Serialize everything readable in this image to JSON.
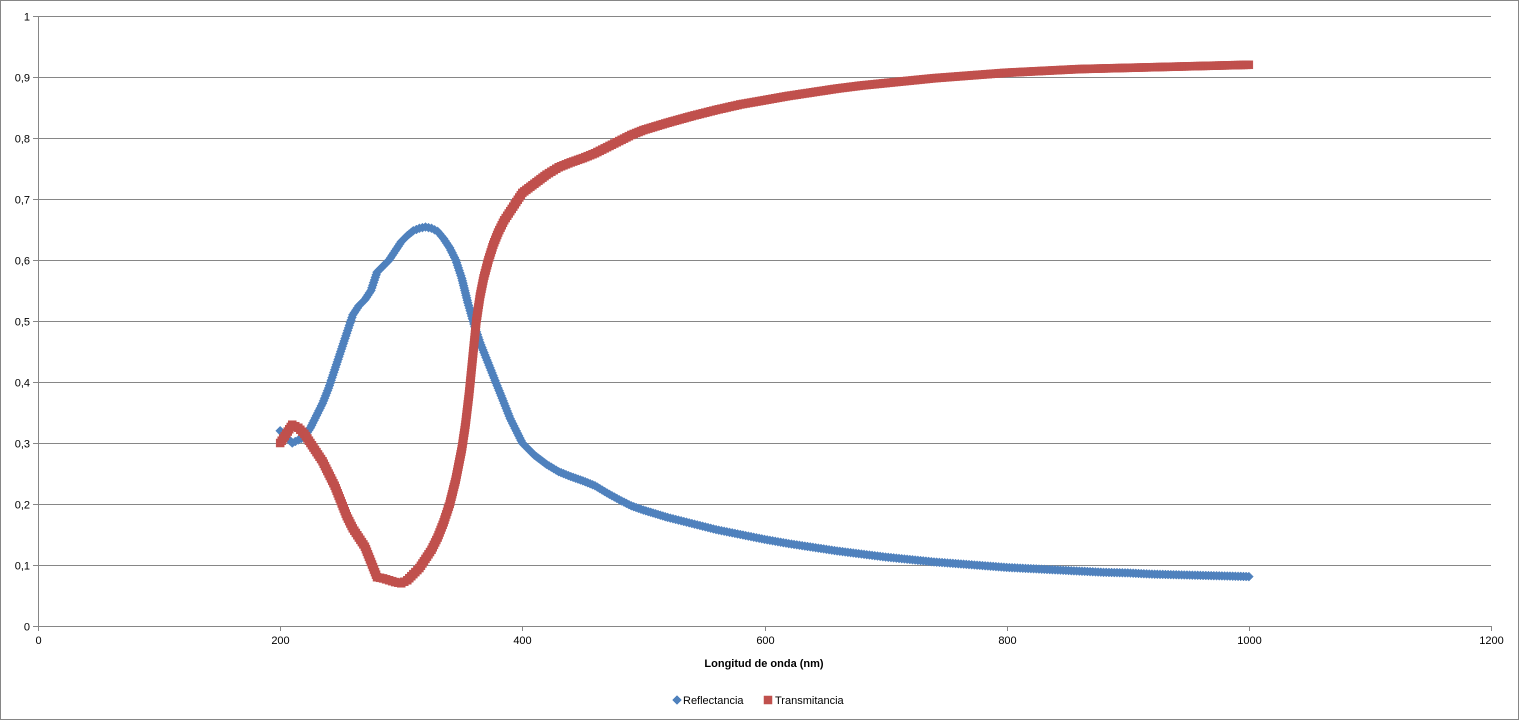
{
  "chart_data": {
    "type": "scatter",
    "title": "",
    "xlabel": "Longitud de onda (nm)",
    "ylabel": "",
    "xlim": [
      0,
      1200
    ],
    "ylim": [
      0,
      1
    ],
    "x_ticks": [
      0,
      200,
      400,
      600,
      800,
      1000,
      1200
    ],
    "x_tick_labels": [
      "0",
      "200",
      "400",
      "600",
      "800",
      "1000",
      "1200"
    ],
    "y_ticks": [
      0,
      0.1,
      0.2,
      0.3,
      0.4,
      0.5,
      0.6,
      0.7,
      0.8,
      0.9,
      1
    ],
    "y_tick_labels": [
      "0",
      "0,1",
      "0,2",
      "0,3",
      "0,4",
      "0,5",
      "0,6",
      "0,7",
      "0,8",
      "0,9",
      "1"
    ],
    "grid": "horizontal",
    "legend_position": "bottom",
    "series": [
      {
        "name": "Reflectancia",
        "marker": "diamond",
        "color": "#4F81BD",
        "points": [
          [
            200,
            0.32
          ],
          [
            205,
            0.31
          ],
          [
            210,
            0.3
          ],
          [
            215,
            0.305
          ],
          [
            220,
            0.31
          ],
          [
            225,
            0.325
          ],
          [
            230,
            0.345
          ],
          [
            235,
            0.365
          ],
          [
            240,
            0.39
          ],
          [
            245,
            0.42
          ],
          [
            250,
            0.45
          ],
          [
            255,
            0.48
          ],
          [
            260,
            0.51
          ],
          [
            265,
            0.525
          ],
          [
            270,
            0.535
          ],
          [
            275,
            0.55
          ],
          [
            280,
            0.58
          ],
          [
            285,
            0.59
          ],
          [
            290,
            0.6
          ],
          [
            295,
            0.615
          ],
          [
            300,
            0.63
          ],
          [
            305,
            0.64
          ],
          [
            310,
            0.648
          ],
          [
            315,
            0.652
          ],
          [
            320,
            0.654
          ],
          [
            325,
            0.652
          ],
          [
            330,
            0.647
          ],
          [
            335,
            0.635
          ],
          [
            340,
            0.62
          ],
          [
            345,
            0.6
          ],
          [
            350,
            0.57
          ],
          [
            355,
            0.53
          ],
          [
            360,
            0.495
          ],
          [
            365,
            0.465
          ],
          [
            370,
            0.44
          ],
          [
            375,
            0.415
          ],
          [
            380,
            0.39
          ],
          [
            385,
            0.365
          ],
          [
            390,
            0.34
          ],
          [
            395,
            0.32
          ],
          [
            400,
            0.3
          ],
          [
            410,
            0.28
          ],
          [
            420,
            0.265
          ],
          [
            430,
            0.253
          ],
          [
            440,
            0.245
          ],
          [
            450,
            0.238
          ],
          [
            460,
            0.23
          ],
          [
            470,
            0.218
          ],
          [
            480,
            0.207
          ],
          [
            490,
            0.197
          ],
          [
            500,
            0.19
          ],
          [
            520,
            0.178
          ],
          [
            540,
            0.168
          ],
          [
            560,
            0.158
          ],
          [
            580,
            0.15
          ],
          [
            600,
            0.142
          ],
          [
            620,
            0.135
          ],
          [
            640,
            0.129
          ],
          [
            660,
            0.123
          ],
          [
            680,
            0.118
          ],
          [
            700,
            0.113
          ],
          [
            720,
            0.109
          ],
          [
            740,
            0.105
          ],
          [
            760,
            0.102
          ],
          [
            780,
            0.099
          ],
          [
            800,
            0.096
          ],
          [
            820,
            0.094
          ],
          [
            840,
            0.092
          ],
          [
            860,
            0.09
          ],
          [
            880,
            0.088
          ],
          [
            900,
            0.087
          ],
          [
            920,
            0.085
          ],
          [
            940,
            0.084
          ],
          [
            960,
            0.083
          ],
          [
            980,
            0.082
          ],
          [
            1000,
            0.081
          ]
        ]
      },
      {
        "name": "Transmitancia",
        "marker": "square",
        "color": "#C0504D",
        "points": [
          [
            200,
            0.3
          ],
          [
            205,
            0.315
          ],
          [
            210,
            0.33
          ],
          [
            215,
            0.325
          ],
          [
            220,
            0.315
          ],
          [
            225,
            0.3
          ],
          [
            230,
            0.285
          ],
          [
            235,
            0.27
          ],
          [
            240,
            0.25
          ],
          [
            245,
            0.23
          ],
          [
            250,
            0.205
          ],
          [
            255,
            0.18
          ],
          [
            260,
            0.16
          ],
          [
            265,
            0.145
          ],
          [
            270,
            0.13
          ],
          [
            275,
            0.105
          ],
          [
            280,
            0.08
          ],
          [
            285,
            0.078
          ],
          [
            290,
            0.075
          ],
          [
            295,
            0.072
          ],
          [
            300,
            0.07
          ],
          [
            305,
            0.075
          ],
          [
            310,
            0.085
          ],
          [
            315,
            0.095
          ],
          [
            320,
            0.11
          ],
          [
            325,
            0.125
          ],
          [
            330,
            0.145
          ],
          [
            335,
            0.17
          ],
          [
            340,
            0.2
          ],
          [
            345,
            0.24
          ],
          [
            350,
            0.29
          ],
          [
            353,
            0.33
          ],
          [
            356,
            0.38
          ],
          [
            358,
            0.42
          ],
          [
            360,
            0.46
          ],
          [
            362,
            0.5
          ],
          [
            365,
            0.54
          ],
          [
            368,
            0.57
          ],
          [
            372,
            0.6
          ],
          [
            376,
            0.625
          ],
          [
            380,
            0.645
          ],
          [
            385,
            0.665
          ],
          [
            390,
            0.68
          ],
          [
            395,
            0.695
          ],
          [
            400,
            0.71
          ],
          [
            410,
            0.725
          ],
          [
            420,
            0.74
          ],
          [
            430,
            0.752
          ],
          [
            440,
            0.76
          ],
          [
            450,
            0.767
          ],
          [
            460,
            0.775
          ],
          [
            470,
            0.785
          ],
          [
            480,
            0.795
          ],
          [
            490,
            0.805
          ],
          [
            500,
            0.813
          ],
          [
            520,
            0.825
          ],
          [
            540,
            0.836
          ],
          [
            560,
            0.846
          ],
          [
            580,
            0.855
          ],
          [
            600,
            0.862
          ],
          [
            620,
            0.869
          ],
          [
            640,
            0.875
          ],
          [
            660,
            0.881
          ],
          [
            680,
            0.886
          ],
          [
            700,
            0.89
          ],
          [
            720,
            0.894
          ],
          [
            740,
            0.898
          ],
          [
            760,
            0.901
          ],
          [
            780,
            0.904
          ],
          [
            800,
            0.907
          ],
          [
            820,
            0.909
          ],
          [
            840,
            0.911
          ],
          [
            860,
            0.913
          ],
          [
            880,
            0.914
          ],
          [
            900,
            0.915
          ],
          [
            920,
            0.916
          ],
          [
            940,
            0.917
          ],
          [
            960,
            0.918
          ],
          [
            980,
            0.919
          ],
          [
            1000,
            0.92
          ]
        ]
      }
    ]
  }
}
